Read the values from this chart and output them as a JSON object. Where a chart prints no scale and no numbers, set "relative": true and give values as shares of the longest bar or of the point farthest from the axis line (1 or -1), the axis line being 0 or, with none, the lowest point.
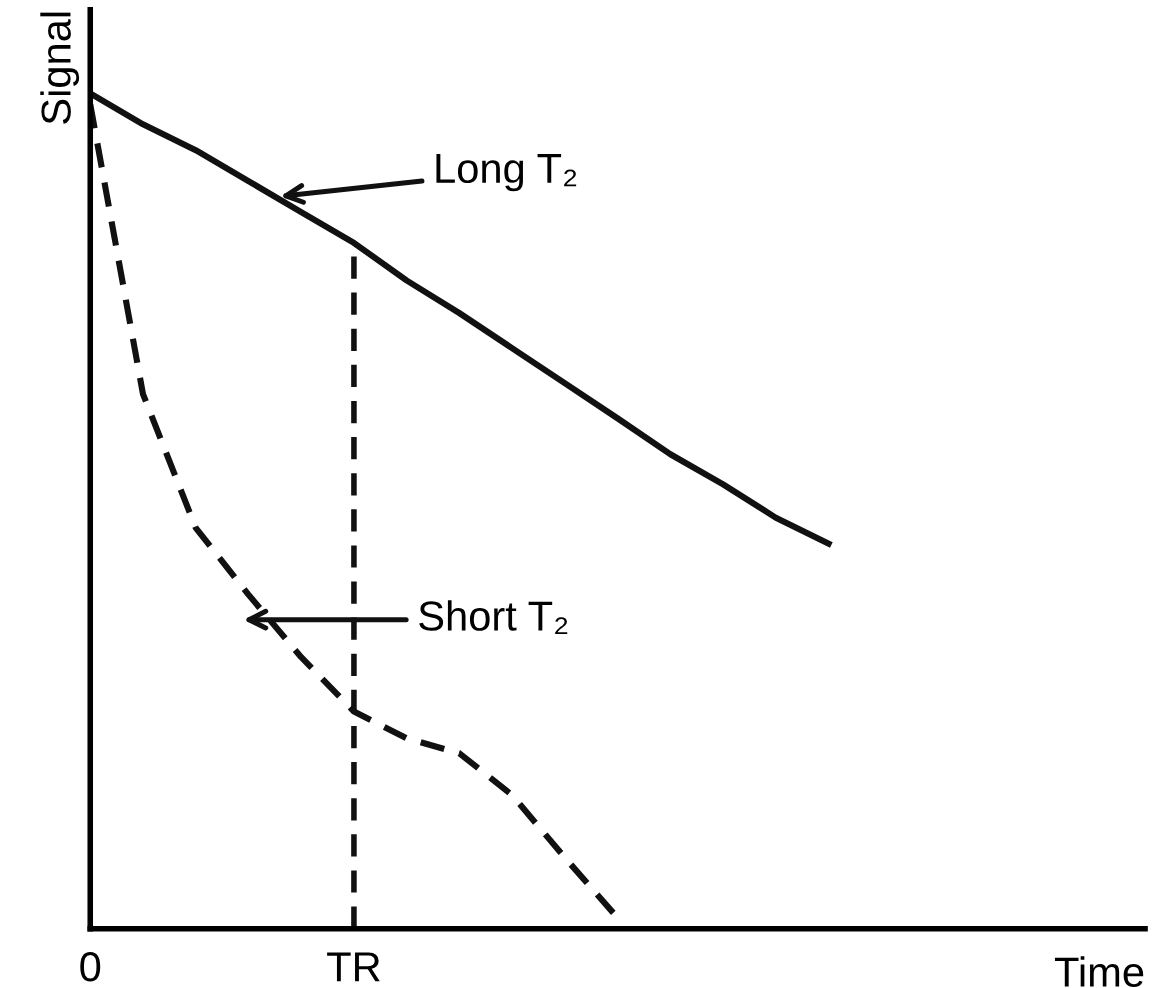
{
  "chart_data": {
    "type": "line",
    "relative": true,
    "xlabel": "Time",
    "ylabel": "Signal",
    "categories": [
      "0",
      null,
      null,
      null,
      null,
      "TR",
      null,
      null,
      null,
      null,
      null,
      null,
      null,
      null,
      null,
      null,
      null,
      null,
      null,
      null,
      null
    ],
    "series": [
      {
        "color": "#111111",
        "line_style": "solid",
        "values": [
          1.0,
          0.963,
          0.932,
          0.895,
          0.858,
          0.821,
          0.776,
          0.737,
          0.695,
          0.653,
          0.611,
          0.568,
          0.532,
          0.492,
          0.461,
          null,
          null,
          null,
          null,
          null,
          null
        ]
      },
      {
        "color": "#111111",
        "line_style": "dashed",
        "values": [
          0.987,
          0.64,
          0.48,
          0.4,
          0.325,
          0.26,
          0.228,
          0.21,
          0.16,
          0.085,
          0.013,
          null,
          null,
          null,
          null,
          null,
          null,
          null,
          null,
          null,
          null
        ]
      }
    ],
    "ref_lines": [
      {
        "axis": "x",
        "value": "TR",
        "line_style": "dashed",
        "color": "#111111"
      }
    ],
    "annotations": [
      "Long T₂",
      "Short T₂"
    ],
    "grid": false,
    "legend": false,
    "marker": "none"
  }
}
